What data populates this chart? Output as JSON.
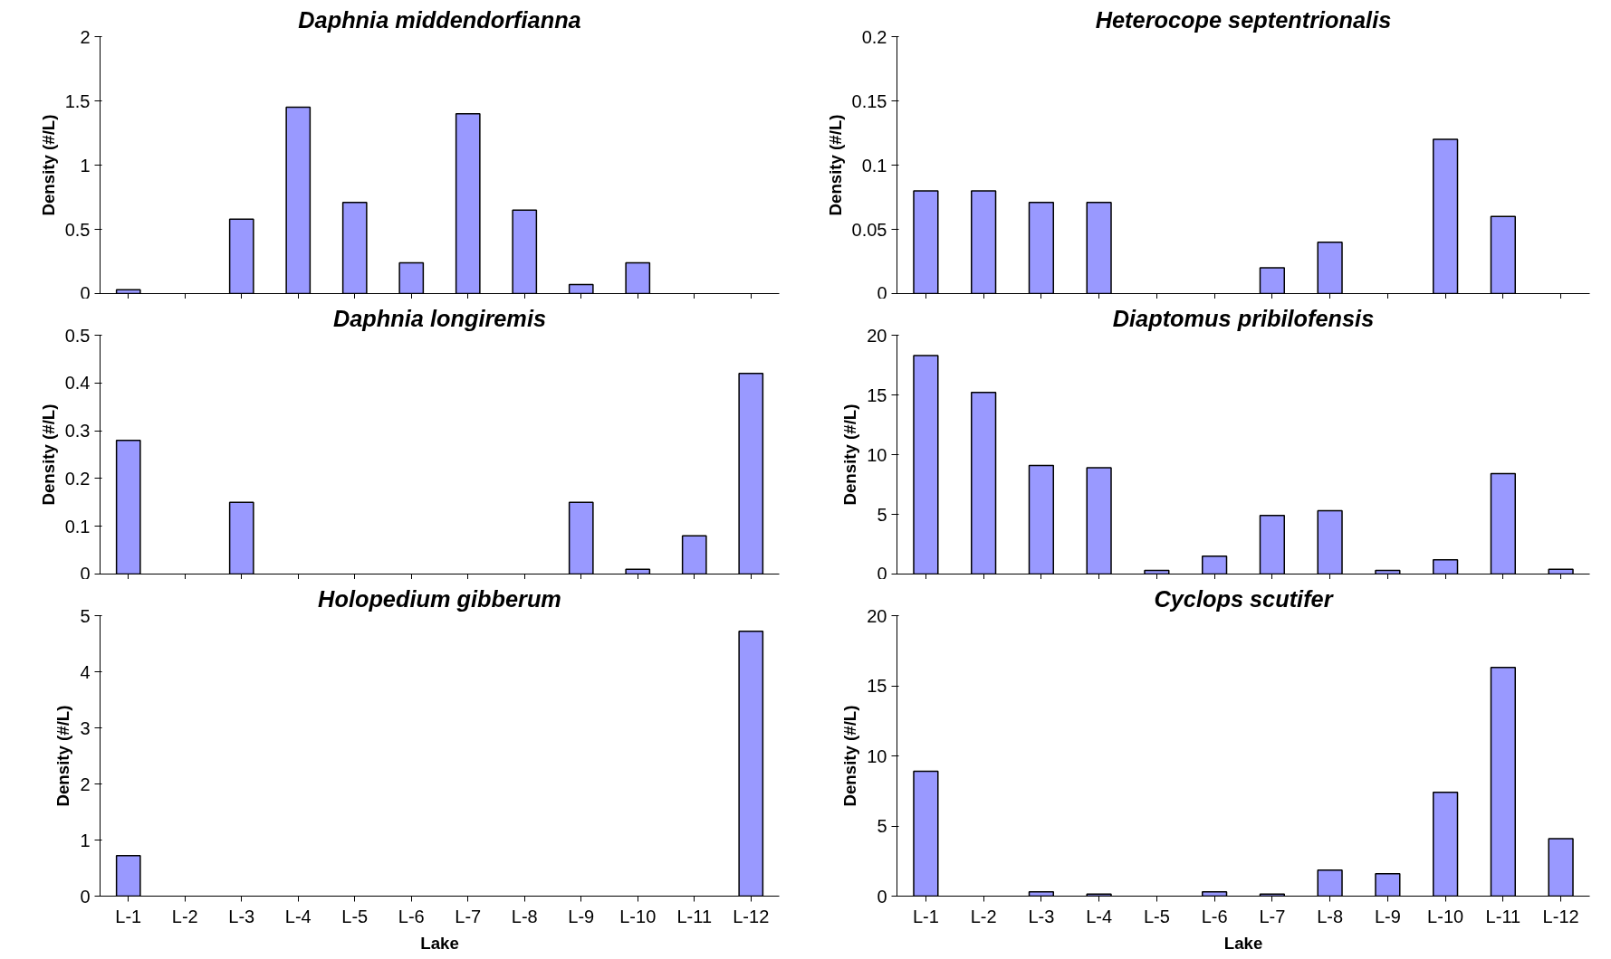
{
  "chart_data": [
    {
      "type": "bar",
      "title": "Daphnia middendorfianna",
      "ylabel": "Density (#/L)",
      "categories": [
        null,
        null,
        null,
        null,
        null,
        null,
        null,
        null,
        null,
        null,
        null,
        null
      ],
      "values": [
        0.03,
        0,
        0.58,
        1.45,
        0.71,
        0.24,
        1.4,
        0.65,
        0.07,
        0.24,
        0,
        0
      ],
      "color": "#9999ff",
      "ylim": [
        0,
        2
      ],
      "yticks": [
        0,
        0.5,
        1,
        1.5,
        2
      ],
      "grid": false,
      "tick_labels": "y"
    },
    {
      "type": "bar",
      "title": "Heterocope septentrionalis",
      "ylabel": "Density (#/L)",
      "categories": [
        null,
        null,
        null,
        null,
        null,
        null,
        null,
        null,
        null,
        null,
        null,
        null
      ],
      "values": [
        0.08,
        0.08,
        0.071,
        0.071,
        0,
        0,
        0.02,
        0.04,
        0,
        0.12,
        0.06,
        0
      ],
      "color": "#9999ff",
      "ylim": [
        0,
        0.2
      ],
      "yticks": [
        0,
        0.05,
        0.1,
        0.15,
        0.2
      ],
      "grid": false,
      "tick_labels": "y"
    },
    {
      "type": "bar",
      "title": "Daphnia longiremis",
      "ylabel": "Density (#/L)",
      "categories": [
        null,
        null,
        null,
        null,
        null,
        null,
        null,
        null,
        null,
        null,
        null,
        null
      ],
      "values": [
        0.28,
        0,
        0.15,
        0,
        0,
        0,
        0,
        0,
        0.15,
        0.01,
        0.08,
        0.42
      ],
      "color": "#9999ff",
      "ylim": [
        0,
        0.5
      ],
      "yticks": [
        0,
        0.1,
        0.2,
        0.3,
        0.4,
        0.5
      ],
      "grid": false,
      "tick_labels": "y"
    },
    {
      "type": "bar",
      "title": "Diaptomus pribilofensis",
      "ylabel": "Density (#/L)",
      "categories": [
        null,
        null,
        null,
        null,
        null,
        null,
        null,
        null,
        null,
        null,
        null,
        null
      ],
      "values": [
        18.3,
        15.2,
        9.1,
        8.9,
        0.3,
        1.5,
        4.9,
        5.3,
        0.3,
        1.2,
        8.4,
        0.4
      ],
      "color": "#9999ff",
      "ylim": [
        0,
        20
      ],
      "yticks": [
        0,
        5,
        10,
        15,
        20
      ],
      "grid": false,
      "tick_labels": "y"
    },
    {
      "type": "bar",
      "title": "Holopedium gibberum",
      "xlabel": "Lake",
      "ylabel": "Density (#/L)",
      "categories": [
        "L-1",
        "L-2",
        "L-3",
        "L-4",
        "L-5",
        "L-6",
        "L-7",
        "L-8",
        "L-9",
        "L-10",
        "L-11",
        "L-12"
      ],
      "values": [
        0.72,
        0,
        0,
        0,
        0,
        0,
        0,
        0,
        0,
        0,
        0,
        4.72
      ],
      "color": "#9999ff",
      "ylim": [
        0,
        5
      ],
      "yticks": [
        0,
        1,
        2,
        3,
        4,
        5
      ],
      "grid": false
    },
    {
      "type": "bar",
      "title": "Cyclops scutifer",
      "xlabel": "Lake",
      "ylabel": "Density (#/L)",
      "categories": [
        "L-1",
        "L-2",
        "L-3",
        "L-4",
        "L-5",
        "L-6",
        "L-7",
        "L-8",
        "L-9",
        "L-10",
        "L-11",
        "L-12"
      ],
      "values": [
        8.9,
        0,
        0.3,
        0.15,
        0,
        0.3,
        0.15,
        1.85,
        1.6,
        7.4,
        16.3,
        4.1
      ],
      "color": "#9999ff",
      "ylim": [
        0,
        20
      ],
      "yticks": [
        0,
        5,
        10,
        15,
        20
      ],
      "grid": false
    }
  ]
}
